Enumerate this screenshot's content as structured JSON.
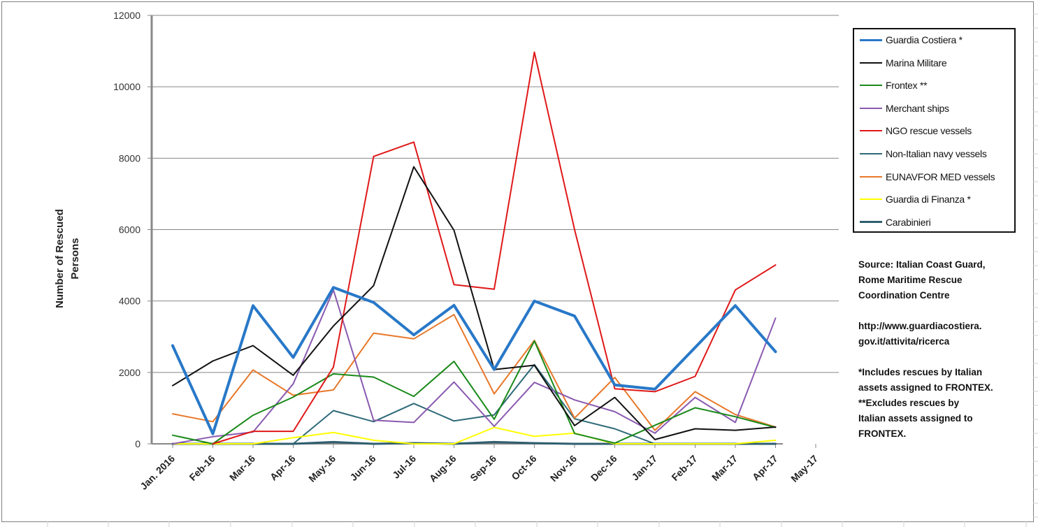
{
  "chart_data": {
    "type": "line",
    "title": "",
    "xlabel": "",
    "ylabel": "Number of Rescued Persons",
    "ylabel_lines": [
      "Number of Rescued",
      "Persons"
    ],
    "ylim": [
      0,
      12000
    ],
    "yticks": [
      0,
      2000,
      4000,
      6000,
      8000,
      10000,
      12000
    ],
    "grid": "horizontal",
    "legend_position": "right",
    "categories": [
      "Jan. 2016",
      "Feb-16",
      "Mar-16",
      "Apr-16",
      "May-16",
      "Jun-16",
      "Jul-16",
      "Aug-16",
      "Sep-16",
      "Oct-16",
      "Nov-16",
      "Dec-16",
      "Jan-17",
      "Feb-17",
      "Mar-17",
      "Apr-17",
      "May-17"
    ],
    "series": [
      {
        "name": "Guardia Costiera *",
        "color": "#2878c8",
        "width": 4,
        "values": [
          2750,
          280,
          3870,
          2420,
          4380,
          3960,
          3050,
          3880,
          2080,
          4000,
          3580,
          1650,
          1530,
          2700,
          3870,
          2580,
          null
        ]
      },
      {
        "name": "Marina Militare",
        "color": "#111111",
        "width": 2,
        "values": [
          1630,
          2320,
          2750,
          1920,
          3300,
          4430,
          7760,
          5980,
          2080,
          2200,
          510,
          1300,
          120,
          420,
          380,
          470,
          null
        ]
      },
      {
        "name": "Frontex **",
        "color": "#1a8a1a",
        "width": 2,
        "values": [
          240,
          0,
          800,
          1310,
          1960,
          1870,
          1330,
          2310,
          690,
          2880,
          290,
          20,
          520,
          1010,
          760,
          460,
          null
        ]
      },
      {
        "name": "Merchant ships",
        "color": "#8a5ab0",
        "width": 2,
        "values": [
          0,
          200,
          330,
          1680,
          4310,
          660,
          600,
          1730,
          490,
          1720,
          1230,
          900,
          300,
          1300,
          600,
          3520,
          null
        ]
      },
      {
        "name": "NGO rescue vessels",
        "color": "#e01818",
        "width": 2,
        "values": [
          null,
          0,
          350,
          350,
          2150,
          8050,
          8450,
          4460,
          4330,
          10970,
          6000,
          1540,
          1460,
          1890,
          4310,
          5010,
          null
        ]
      },
      {
        "name": "Non-Italian navy vessels",
        "color": "#2e6a78",
        "width": 2,
        "values": [
          0,
          0,
          0,
          0,
          930,
          620,
          1130,
          640,
          810,
          2220,
          700,
          420,
          0,
          0,
          0,
          0,
          null
        ]
      },
      {
        "name": "EUNAVFOR MED vessels",
        "color": "#e8782a",
        "width": 2,
        "values": [
          840,
          620,
          2070,
          1360,
          1510,
          3100,
          2940,
          3620,
          1400,
          2900,
          720,
          1860,
          380,
          1460,
          820,
          470,
          null
        ]
      },
      {
        "name": "Guardia di Finanza *",
        "color": "#ffff00",
        "width": 2,
        "values": [
          0,
          0,
          0,
          170,
          320,
          100,
          0,
          0,
          460,
          210,
          300,
          0,
          0,
          0,
          0,
          100,
          null
        ]
      },
      {
        "name": "Carabinieri",
        "color": "#2f5f6f",
        "width": 3,
        "values": [
          0,
          0,
          0,
          0,
          50,
          0,
          20,
          0,
          50,
          20,
          0,
          0,
          0,
          0,
          0,
          0,
          null
        ]
      }
    ]
  },
  "source_note": {
    "lines": [
      "Source: Italian Coast Guard,",
      "Rome Maritime Rescue",
      "Coordination  Centre",
      "",
      "http://www.guardiacostiera.",
      "gov.it/attivita/ricerca",
      "",
      "*Includes rescues by Italian",
      "assets assigned to FRONTEX.",
      "**Excludes rescues by",
      "Italian assets assigned to",
      "FRONTEX."
    ]
  }
}
